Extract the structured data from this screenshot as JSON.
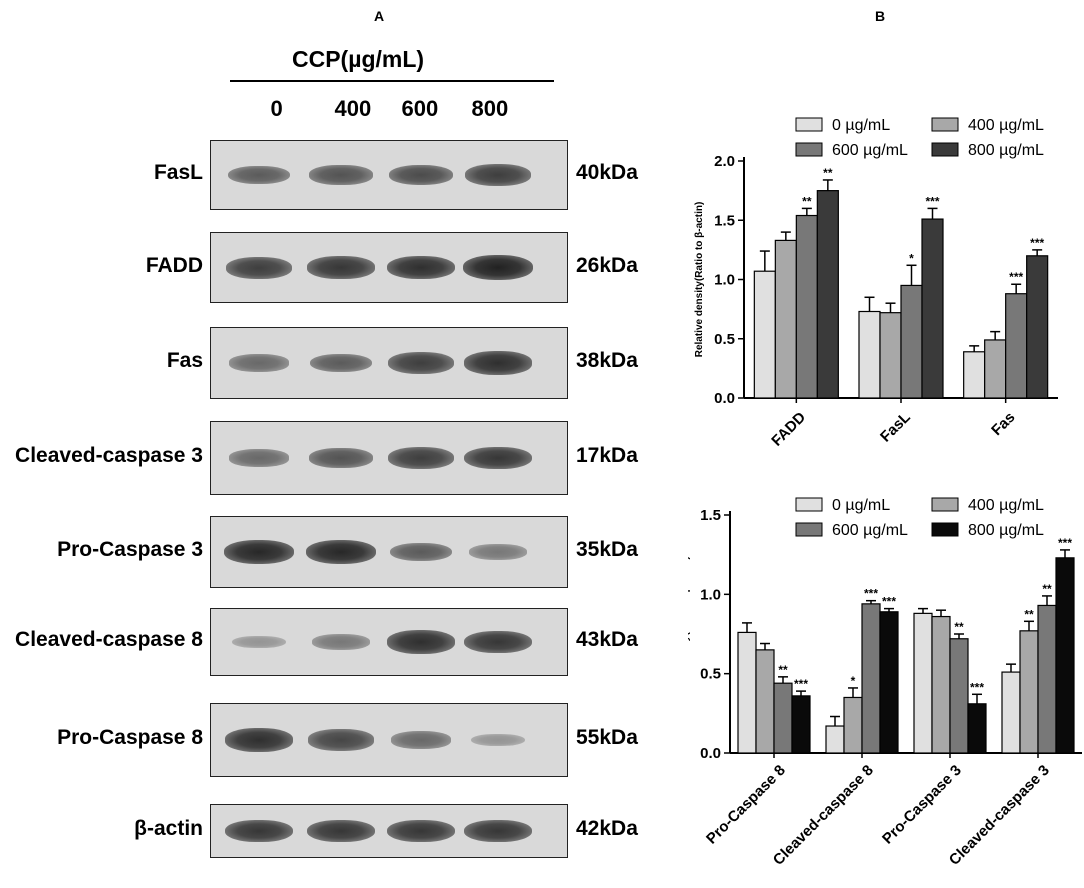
{
  "panel_a": {
    "letter": "A",
    "treatment_label": "CCP(µg/mL)",
    "concentrations": [
      "0",
      "400",
      "600",
      "800"
    ],
    "blots": [
      {
        "name": "FasL",
        "kda": "40kDa",
        "intensity": [
          0.55,
          0.6,
          0.65,
          0.75
        ]
      },
      {
        "name": "FADD",
        "kda": "26kDa",
        "intensity": [
          0.75,
          0.8,
          0.85,
          0.95
        ]
      },
      {
        "name": "Fas",
        "kda": "38kDa",
        "intensity": [
          0.45,
          0.55,
          0.75,
          0.85
        ]
      },
      {
        "name": "Cleaved-caspase 3",
        "kda": "17kDa",
        "intensity": [
          0.45,
          0.6,
          0.75,
          0.8
        ]
      },
      {
        "name": "Pro-Caspase 3",
        "kda": "35kDa",
        "intensity": [
          0.9,
          0.9,
          0.55,
          0.35
        ]
      },
      {
        "name": "Cleaved-caspase 8",
        "kda": "43kDa",
        "intensity": [
          0.15,
          0.35,
          0.85,
          0.8
        ]
      },
      {
        "name": "Pro-Caspase 8",
        "kda": "55kDa",
        "intensity": [
          0.85,
          0.7,
          0.45,
          0.15
        ]
      },
      {
        "name": "β-actin",
        "kda": "42kDa",
        "intensity": [
          0.8,
          0.8,
          0.8,
          0.8
        ]
      }
    ]
  },
  "panel_b": {
    "letter": "B"
  },
  "colors": {
    "c0": "#e0e0e0",
    "c400": "#a8a8a8",
    "c600": "#787878",
    "c800": "#3a3a3a",
    "c800b": "#0a0a0a"
  },
  "chart_data": [
    {
      "type": "bar",
      "categories": [
        "FADD",
        "FasL",
        "Fas"
      ],
      "ylabel": "Relative density(Ratio to β-actin)",
      "ylim": [
        0,
        2.0
      ],
      "yticks": [
        "0.0",
        "0.5",
        "1.0",
        "1.5",
        "2.0"
      ],
      "legend": [
        "0 µg/mL",
        "400 µg/mL",
        "600 µg/mL",
        "800 µg/mL"
      ],
      "legend_position": "top",
      "series": [
        {
          "name": "0 µg/mL",
          "values": [
            1.07,
            0.73,
            0.39
          ],
          "errors": [
            0.17,
            0.12,
            0.05
          ],
          "sig": [
            "",
            "",
            ""
          ]
        },
        {
          "name": "400 µg/mL",
          "values": [
            1.33,
            0.72,
            0.49
          ],
          "errors": [
            0.07,
            0.08,
            0.07
          ],
          "sig": [
            "",
            "",
            ""
          ]
        },
        {
          "name": "600 µg/mL",
          "values": [
            1.54,
            0.95,
            0.88
          ],
          "errors": [
            0.06,
            0.17,
            0.08
          ],
          "sig": [
            "**",
            "*",
            "***"
          ]
        },
        {
          "name": "800 µg/mL",
          "values": [
            1.75,
            1.51,
            1.2
          ],
          "errors": [
            0.09,
            0.09,
            0.05
          ],
          "sig": [
            "**",
            "***",
            "***"
          ]
        }
      ]
    },
    {
      "type": "bar",
      "categories": [
        "Pro-Caspase 8",
        "Cleaved-caspase 8",
        "Pro-Caspase 3",
        "Cleaved-caspase 3"
      ],
      "ylabel": "Relative density(Ratio to β-actin)",
      "ylim": [
        0,
        1.5
      ],
      "yticks": [
        "0.0",
        "0.5",
        "1.0",
        "1.5"
      ],
      "legend": [
        "0 µg/mL",
        "400 µg/mL",
        "600 µg/mL",
        "800 µg/mL"
      ],
      "legend_position": "top",
      "series": [
        {
          "name": "0 µg/mL",
          "values": [
            0.76,
            0.17,
            0.88,
            0.51
          ],
          "errors": [
            0.06,
            0.06,
            0.03,
            0.05
          ],
          "sig": [
            "",
            "",
            "",
            ""
          ]
        },
        {
          "name": "400 µg/mL",
          "values": [
            0.65,
            0.35,
            0.86,
            0.77
          ],
          "errors": [
            0.04,
            0.06,
            0.04,
            0.06
          ],
          "sig": [
            "",
            "*",
            "",
            "**"
          ]
        },
        {
          "name": "600 µg/mL",
          "values": [
            0.44,
            0.94,
            0.72,
            0.93
          ],
          "errors": [
            0.04,
            0.02,
            0.03,
            0.06
          ],
          "sig": [
            "**",
            "***",
            "**",
            "**"
          ]
        },
        {
          "name": "800 µg/mL",
          "values": [
            0.36,
            0.89,
            0.31,
            1.23
          ],
          "errors": [
            0.03,
            0.02,
            0.06,
            0.05
          ],
          "sig": [
            "***",
            "***",
            "***",
            "***"
          ]
        }
      ]
    }
  ]
}
